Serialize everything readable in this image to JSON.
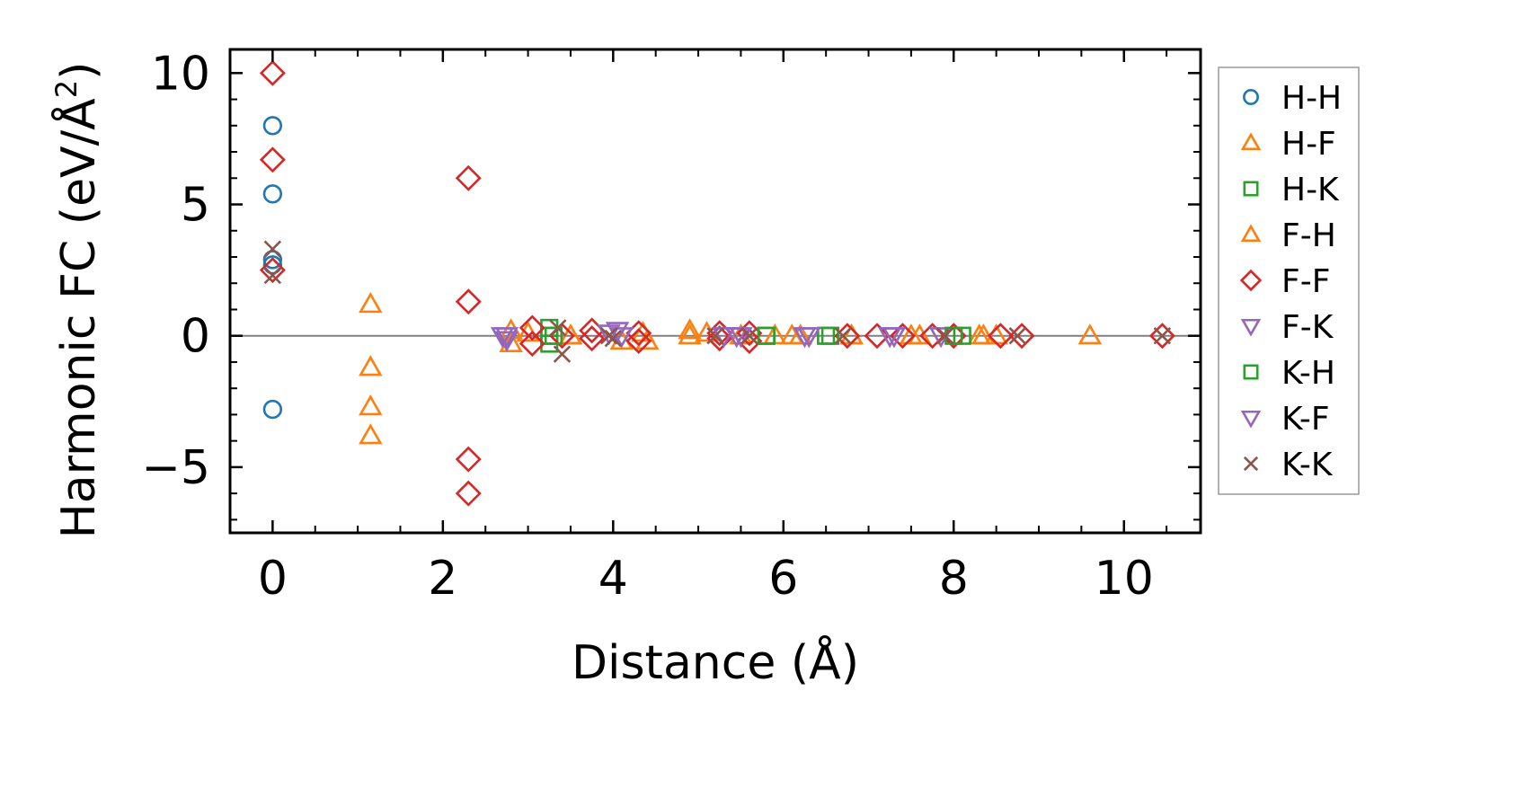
{
  "chart_data": {
    "type": "scatter",
    "xlabel": "Distance (Å)",
    "ylabel": "Harmonic FC (eV/Å²)",
    "ylabel_parts": {
      "main": "Harmonic FC (eV/Å",
      "sup": "2",
      "close": ")"
    },
    "xlim": [
      -0.5,
      10.9
    ],
    "ylim": [
      -7.5,
      10.9
    ],
    "xticks": [
      0,
      2,
      4,
      6,
      8,
      10
    ],
    "yticks": [
      10,
      5,
      0,
      -5
    ],
    "xtick_labels": [
      "0",
      "2",
      "4",
      "6",
      "8",
      "10"
    ],
    "ytick_labels": [
      "10",
      "5",
      "0",
      "−5"
    ],
    "zero_line": true,
    "grid": false,
    "legend_position": "outside-right",
    "series": [
      {
        "name": "H-H",
        "marker": "circle",
        "color": "#1f77b4",
        "x": [
          0,
          0,
          0,
          0,
          0
        ],
        "y": [
          8.0,
          5.4,
          2.9,
          2.7,
          -2.8
        ]
      },
      {
        "name": "H-F",
        "marker": "triangle-up",
        "color": "#ff7f0e",
        "x": [
          1.15,
          1.15,
          1.15,
          1.15,
          2.8,
          3.0,
          3.5,
          4.1,
          4.4,
          4.9,
          5.1,
          5.9,
          6.1,
          6.8,
          7.6,
          8.3,
          9.6
        ],
        "y": [
          1.2,
          -1.2,
          -2.7,
          -3.8,
          -0.3,
          0.1,
          0.0,
          -0.2,
          -0.2,
          0.0,
          0.1,
          0.0,
          0.0,
          0.0,
          0.0,
          0.0,
          0.0
        ]
      },
      {
        "name": "H-K",
        "marker": "square",
        "color": "#2ca02c",
        "x": [
          3.25,
          3.25,
          3.25,
          5.8,
          6.5,
          8.1
        ],
        "y": [
          0.3,
          0.0,
          -0.3,
          0.0,
          0.0,
          0.0
        ]
      },
      {
        "name": "F-H",
        "marker": "triangle-up",
        "color": "#ff7f0e",
        "x": [
          2.8,
          3.5,
          4.35,
          4.9,
          5.5,
          6.2,
          6.8,
          7.5,
          8.35,
          8.5
        ],
        "y": [
          0.2,
          0.0,
          0.1,
          0.2,
          0.0,
          0.0,
          0.0,
          0.0,
          0.0,
          0.0
        ]
      },
      {
        "name": "F-F",
        "marker": "diamond",
        "color": "#d62728",
        "x": [
          0,
          0,
          0,
          2.3,
          2.3,
          2.3,
          2.3,
          3.05,
          3.05,
          3.4,
          3.75,
          3.75,
          4.3,
          4.3,
          5.25,
          5.25,
          5.6,
          5.6,
          6.75,
          7.1,
          7.4,
          7.75,
          8.0,
          8.55,
          8.8,
          10.45
        ],
        "y": [
          10.0,
          6.7,
          2.5,
          6.0,
          1.3,
          -4.7,
          -6.0,
          0.3,
          -0.3,
          0.0,
          0.2,
          -0.1,
          0.1,
          -0.2,
          0.1,
          -0.1,
          0.1,
          -0.2,
          0.0,
          0.0,
          0.0,
          0.0,
          0.0,
          0.0,
          0.0,
          0.0
        ]
      },
      {
        "name": "F-K",
        "marker": "triangle-down",
        "color": "#9467bd",
        "x": [
          2.75,
          2.75,
          3.95,
          4.1,
          5.3,
          5.45,
          6.25,
          7.25,
          7.85
        ],
        "y": [
          0.0,
          -0.15,
          0.1,
          0.0,
          0.0,
          0.0,
          0.0,
          0.0,
          0.0
        ]
      },
      {
        "name": "K-H",
        "marker": "square",
        "color": "#2ca02c",
        "x": [
          3.3,
          5.8,
          6.55,
          8.0
        ],
        "y": [
          0.0,
          0.0,
          0.0,
          0.0
        ]
      },
      {
        "name": "K-F",
        "marker": "triangle-down",
        "color": "#9467bd",
        "x": [
          2.7,
          4.05,
          5.5,
          6.3,
          7.3
        ],
        "y": [
          0.0,
          0.2,
          0.0,
          0.0,
          0.0
        ]
      },
      {
        "name": "K-K",
        "marker": "x",
        "color": "#8c564b",
        "x": [
          0,
          0,
          3.35,
          3.4,
          3.95,
          4.0,
          5.2,
          5.6,
          6.7,
          7.9,
          8.75,
          10.45
        ],
        "y": [
          3.3,
          2.3,
          0.3,
          -0.7,
          0.0,
          -0.1,
          0.0,
          0.0,
          0.0,
          0.0,
          0.0,
          0.0
        ]
      }
    ]
  }
}
